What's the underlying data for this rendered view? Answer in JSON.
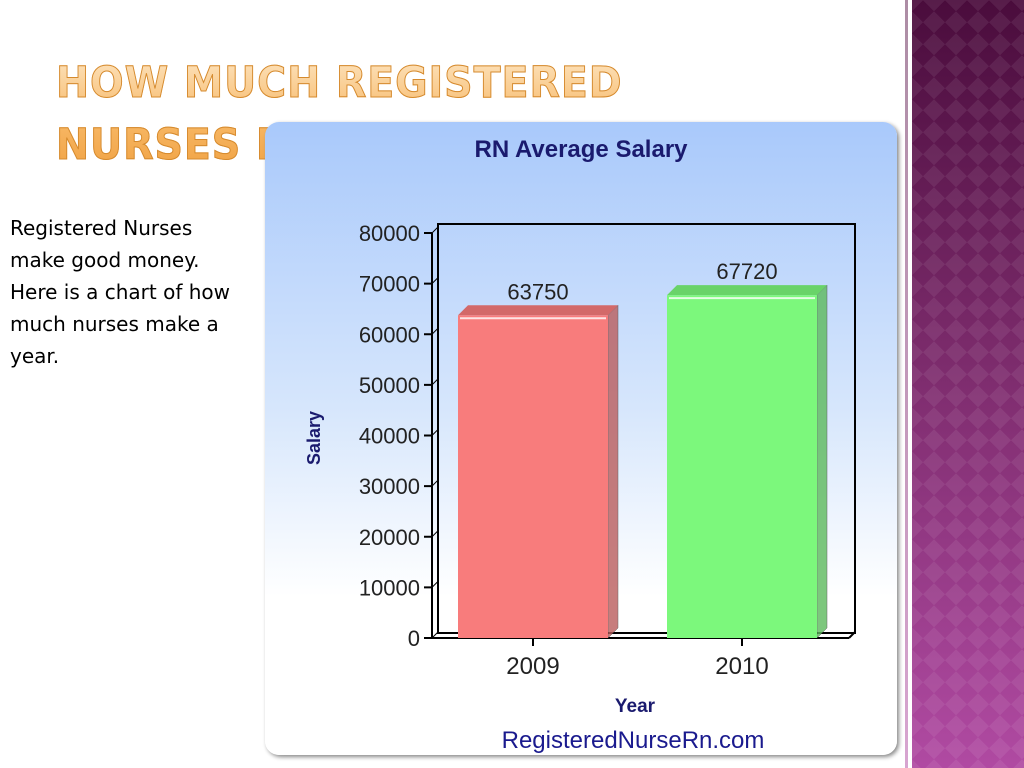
{
  "slide": {
    "title": "HOW MUCH REGISTERED NURSES MAKE",
    "body": "Registered Nurses make good money. Here is a chart of how much nurses make a year."
  },
  "chart_data": {
    "type": "bar",
    "title": "RN Average Salary",
    "xlabel": "Year",
    "ylabel": "Salary",
    "categories": [
      "2009",
      "2010"
    ],
    "values": [
      63750,
      67720
    ],
    "data_labels": [
      "63750",
      "67720"
    ],
    "bar_colors": [
      "#f87c7c",
      "#7cf87c"
    ],
    "ylim": [
      0,
      80000
    ],
    "yticks": [
      "0",
      "10000",
      "20000",
      "30000",
      "40000",
      "50000",
      "60000",
      "70000",
      "80000"
    ],
    "grid": false,
    "legend": "none",
    "footer": "RegisteredNurseRn.com"
  }
}
